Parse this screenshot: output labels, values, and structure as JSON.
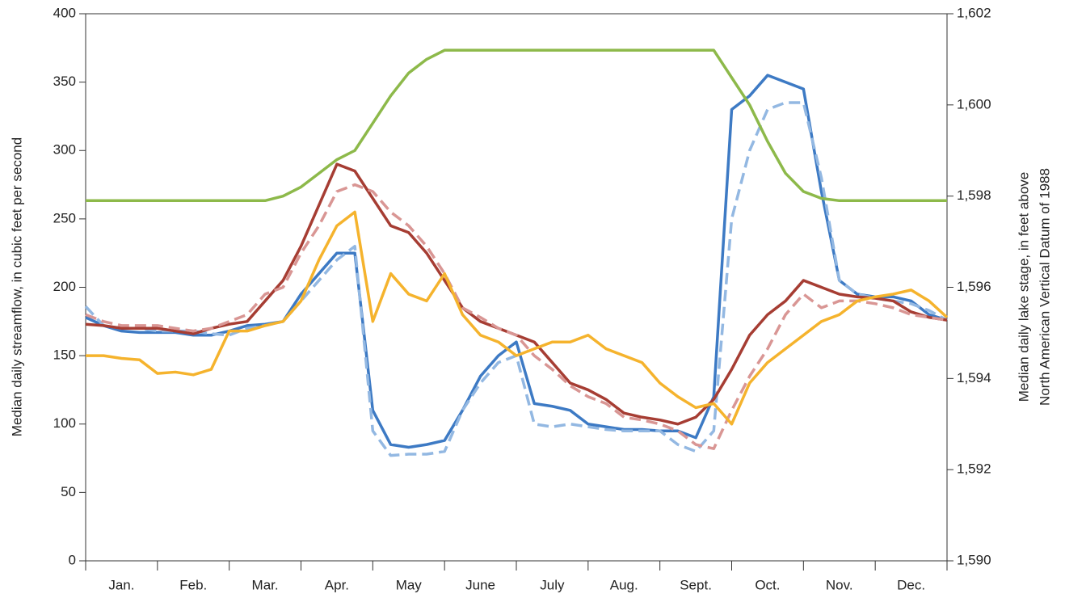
{
  "chart_data": {
    "type": "line",
    "categories": [
      "Jan.",
      "Feb.",
      "Mar.",
      "Apr.",
      "May",
      "June",
      "July",
      "Aug.",
      "Sept.",
      "Oct.",
      "Nov.",
      "Dec."
    ],
    "x": [
      0,
      0.25,
      0.5,
      0.75,
      1,
      1.25,
      1.5,
      1.75,
      2,
      2.25,
      2.5,
      2.75,
      3,
      3.25,
      3.5,
      3.75,
      4,
      4.25,
      4.5,
      4.75,
      5,
      5.25,
      5.5,
      5.75,
      6,
      6.25,
      6.5,
      6.75,
      7,
      7.25,
      7.5,
      7.75,
      8,
      8.25,
      8.5,
      8.75,
      9,
      9.25,
      9.5,
      9.75,
      10,
      10.25,
      10.5,
      10.75,
      11,
      11.25,
      11.5,
      11.75,
      12
    ],
    "xlim": [
      0,
      12
    ],
    "y_label": "Median daily streamflow, in cubic feet per second",
    "y2_label": [
      "Median daily lake stage, in feet above",
      "North American Vertical Datum of 1988"
    ],
    "ylim": [
      0,
      400
    ],
    "yticks": [
      0,
      50,
      100,
      150,
      200,
      250,
      300,
      350,
      400
    ],
    "y2lim": [
      1590,
      1602
    ],
    "y2ticks": [
      {
        "value": 1590,
        "label": "1,590"
      },
      {
        "value": 1592,
        "label": "1,592"
      },
      {
        "value": 1594,
        "label": "1,594"
      },
      {
        "value": 1596,
        "label": "1,596"
      },
      {
        "value": 1598,
        "label": "1,598"
      },
      {
        "value": 1600,
        "label": "1,600"
      },
      {
        "value": 1602,
        "label": "1,602"
      }
    ],
    "series": [
      {
        "color": "#3d7ac4",
        "dashed": false,
        "values": [
          178,
          172,
          168,
          167,
          167,
          167,
          165,
          165,
          168,
          172,
          173,
          175,
          195,
          210,
          225,
          225,
          110,
          85,
          83,
          85,
          88,
          110,
          135,
          150,
          160,
          115,
          113,
          110,
          100,
          98,
          96,
          96,
          95,
          95,
          90,
          120,
          330,
          340,
          355,
          350,
          345,
          270,
          205,
          195,
          193,
          193,
          190,
          180,
          176
        ]
      },
      {
        "color": "#93b8e2",
        "dashed": true,
        "values": [
          186,
          172,
          170,
          170,
          168,
          168,
          168,
          166,
          165,
          170,
          172,
          175,
          190,
          205,
          220,
          230,
          95,
          77,
          78,
          78,
          80,
          110,
          130,
          145,
          150,
          100,
          98,
          100,
          98,
          96,
          95,
          95,
          95,
          85,
          80,
          95,
          250,
          300,
          330,
          335,
          335,
          280,
          205,
          195,
          192,
          190,
          188,
          183,
          176
        ]
      },
      {
        "color": "#a63d33",
        "dashed": false,
        "values": [
          173,
          172,
          170,
          170,
          170,
          168,
          166,
          170,
          173,
          175,
          190,
          205,
          230,
          260,
          290,
          285,
          265,
          245,
          240,
          225,
          205,
          185,
          175,
          170,
          165,
          160,
          145,
          130,
          125,
          118,
          108,
          105,
          103,
          100,
          105,
          118,
          140,
          165,
          180,
          190,
          205,
          200,
          195,
          193,
          192,
          190,
          182,
          178,
          176
        ]
      },
      {
        "color": "#d99694",
        "dashed": true,
        "values": [
          180,
          175,
          172,
          172,
          172,
          170,
          168,
          170,
          175,
          180,
          195,
          200,
          225,
          245,
          270,
          275,
          270,
          255,
          245,
          230,
          210,
          185,
          178,
          170,
          165,
          150,
          140,
          128,
          120,
          115,
          105,
          103,
          100,
          95,
          85,
          82,
          110,
          135,
          155,
          180,
          195,
          185,
          190,
          190,
          188,
          185,
          180,
          178,
          176
        ]
      },
      {
        "color": "#f5b32d",
        "dashed": false,
        "values": [
          150,
          150,
          148,
          147,
          137,
          138,
          136,
          140,
          168,
          168,
          172,
          175,
          190,
          220,
          245,
          255,
          175,
          210,
          195,
          190,
          210,
          180,
          165,
          160,
          150,
          155,
          160,
          160,
          165,
          155,
          150,
          145,
          130,
          120,
          112,
          115,
          100,
          130,
          145,
          155,
          165,
          175,
          180,
          190,
          193,
          195,
          198,
          190,
          178
        ]
      },
      {
        "color": "#8db94a",
        "dashed": false,
        "axis": "y2",
        "values": [
          1597.9,
          1597.9,
          1597.9,
          1597.9,
          1597.9,
          1597.9,
          1597.9,
          1597.9,
          1597.9,
          1597.9,
          1597.9,
          1598.0,
          1598.2,
          1598.5,
          1598.8,
          1599.0,
          1599.6,
          1600.2,
          1600.7,
          1601.0,
          1601.2,
          1601.2,
          1601.2,
          1601.2,
          1601.2,
          1601.2,
          1601.2,
          1601.2,
          1601.2,
          1601.2,
          1601.2,
          1601.2,
          1601.2,
          1601.2,
          1601.2,
          1601.2,
          1600.6,
          1600.0,
          1599.2,
          1598.5,
          1598.1,
          1597.95,
          1597.9,
          1597.9,
          1597.9,
          1597.9,
          1597.9,
          1597.9,
          1597.9
        ]
      }
    ]
  }
}
